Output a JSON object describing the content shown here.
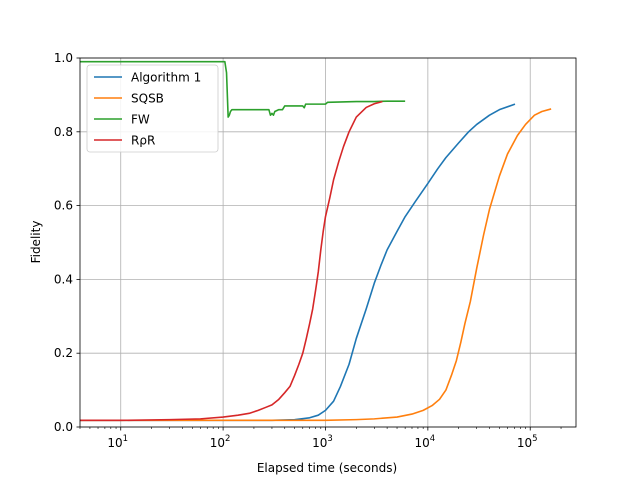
{
  "chart_data": {
    "type": "line",
    "title": "",
    "xlabel": "Elapsed time (seconds)",
    "ylabel": "Fidelity",
    "x_scale": "log",
    "xlim": [
      4,
      280000
    ],
    "ylim": [
      0,
      1.0
    ],
    "grid": true,
    "legend_position": "top-left",
    "x_ticks": [
      {
        "base": "10",
        "exp": "1",
        "value": 10
      },
      {
        "base": "10",
        "exp": "2",
        "value": 100
      },
      {
        "base": "10",
        "exp": "3",
        "value": 1000
      },
      {
        "base": "10",
        "exp": "4",
        "value": 10000
      },
      {
        "base": "10",
        "exp": "5",
        "value": 100000
      }
    ],
    "y_ticks": [
      "0.0",
      "0.2",
      "0.4",
      "0.6",
      "0.8",
      "1.0"
    ],
    "series": [
      {
        "name": "Algorithm 1",
        "color": "#1f77b4",
        "points": [
          [
            4,
            0.018
          ],
          [
            10,
            0.018
          ],
          [
            100,
            0.018
          ],
          [
            300,
            0.018
          ],
          [
            500,
            0.02
          ],
          [
            700,
            0.025
          ],
          [
            850,
            0.032
          ],
          [
            1000,
            0.045
          ],
          [
            1200,
            0.07
          ],
          [
            1400,
            0.11
          ],
          [
            1700,
            0.17
          ],
          [
            2000,
            0.24
          ],
          [
            2500,
            0.32
          ],
          [
            3000,
            0.39
          ],
          [
            3500,
            0.44
          ],
          [
            4000,
            0.48
          ],
          [
            5000,
            0.53
          ],
          [
            6000,
            0.57
          ],
          [
            7500,
            0.61
          ],
          [
            10000,
            0.66
          ],
          [
            12500,
            0.7
          ],
          [
            15000,
            0.73
          ],
          [
            20000,
            0.77
          ],
          [
            25000,
            0.8
          ],
          [
            30000,
            0.82
          ],
          [
            40000,
            0.845
          ],
          [
            50000,
            0.86
          ],
          [
            71000,
            0.875
          ]
        ]
      },
      {
        "name": "SQSB",
        "color": "#ff7f0e",
        "points": [
          [
            4,
            0.018
          ],
          [
            100,
            0.018
          ],
          [
            1000,
            0.018
          ],
          [
            2000,
            0.02
          ],
          [
            3000,
            0.022
          ],
          [
            5000,
            0.027
          ],
          [
            7000,
            0.035
          ],
          [
            9000,
            0.045
          ],
          [
            11000,
            0.058
          ],
          [
            13000,
            0.075
          ],
          [
            15000,
            0.1
          ],
          [
            17000,
            0.14
          ],
          [
            19000,
            0.18
          ],
          [
            21000,
            0.23
          ],
          [
            23000,
            0.28
          ],
          [
            26000,
            0.34
          ],
          [
            30000,
            0.43
          ],
          [
            35000,
            0.52
          ],
          [
            40000,
            0.59
          ],
          [
            50000,
            0.68
          ],
          [
            60000,
            0.74
          ],
          [
            75000,
            0.79
          ],
          [
            90000,
            0.82
          ],
          [
            110000,
            0.845
          ],
          [
            130000,
            0.855
          ],
          [
            160000,
            0.862
          ]
        ]
      },
      {
        "name": "FW",
        "color": "#2ca02c",
        "points": [
          [
            4,
            0.99
          ],
          [
            104,
            0.99
          ],
          [
            108,
            0.96
          ],
          [
            112,
            0.84
          ],
          [
            115,
            0.845
          ],
          [
            118,
            0.855
          ],
          [
            122,
            0.86
          ],
          [
            150,
            0.86
          ],
          [
            200,
            0.86
          ],
          [
            260,
            0.86
          ],
          [
            280,
            0.86
          ],
          [
            290,
            0.845
          ],
          [
            300,
            0.85
          ],
          [
            310,
            0.845
          ],
          [
            320,
            0.855
          ],
          [
            350,
            0.86
          ],
          [
            380,
            0.86
          ],
          [
            400,
            0.87
          ],
          [
            500,
            0.87
          ],
          [
            600,
            0.87
          ],
          [
            620,
            0.865
          ],
          [
            640,
            0.875
          ],
          [
            800,
            0.875
          ],
          [
            1000,
            0.875
          ],
          [
            1050,
            0.88
          ],
          [
            2000,
            0.882
          ],
          [
            3000,
            0.882
          ],
          [
            4000,
            0.883
          ],
          [
            6000,
            0.883
          ]
        ]
      },
      {
        "name": "RρR",
        "color": "#d62728",
        "points": [
          [
            4,
            0.018
          ],
          [
            10,
            0.018
          ],
          [
            30,
            0.02
          ],
          [
            60,
            0.022
          ],
          [
            100,
            0.027
          ],
          [
            140,
            0.032
          ],
          [
            180,
            0.037
          ],
          [
            220,
            0.045
          ],
          [
            260,
            0.053
          ],
          [
            300,
            0.06
          ],
          [
            350,
            0.075
          ],
          [
            400,
            0.093
          ],
          [
            450,
            0.11
          ],
          [
            500,
            0.14
          ],
          [
            550,
            0.17
          ],
          [
            600,
            0.2
          ],
          [
            650,
            0.24
          ],
          [
            700,
            0.28
          ],
          [
            750,
            0.32
          ],
          [
            800,
            0.37
          ],
          [
            850,
            0.42
          ],
          [
            900,
            0.48
          ],
          [
            950,
            0.53
          ],
          [
            1000,
            0.57
          ],
          [
            1100,
            0.62
          ],
          [
            1200,
            0.67
          ],
          [
            1350,
            0.72
          ],
          [
            1500,
            0.76
          ],
          [
            1700,
            0.8
          ],
          [
            2000,
            0.84
          ],
          [
            2500,
            0.866
          ],
          [
            3000,
            0.876
          ],
          [
            3600,
            0.882
          ]
        ]
      }
    ]
  }
}
